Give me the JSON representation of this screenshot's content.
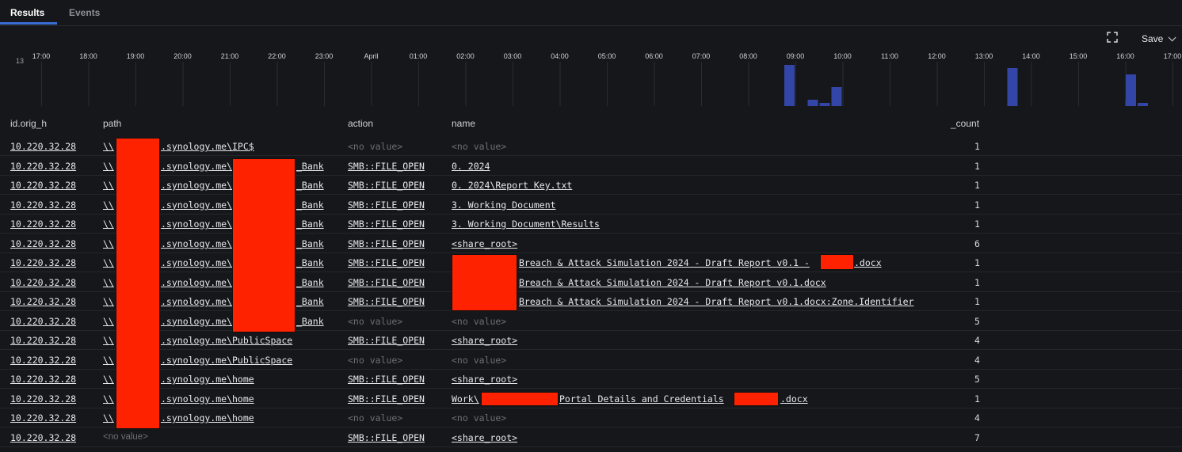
{
  "tabs": [
    {
      "label": "Results",
      "active": true
    },
    {
      "label": "Events",
      "active": false
    }
  ],
  "toolbar": {
    "expand_icon": "expand-icon",
    "save_label": "Save"
  },
  "timeline": {
    "y_max_label": "13",
    "tick_labels": [
      "17:00",
      "18:00",
      "19:00",
      "20:00",
      "21:00",
      "22:00",
      "23:00",
      "April",
      "01:00",
      "02:00",
      "03:00",
      "04:00",
      "05:00",
      "06:00",
      "07:00",
      "08:00",
      "09:00",
      "10:00",
      "11:00",
      "12:00",
      "13:00",
      "14:00",
      "15:00",
      "16:00",
      "17:00"
    ],
    "bar_color": "#3346a8",
    "bars": [
      {
        "hour_index": 16,
        "offset": 0.1,
        "value": 13
      },
      {
        "hour_index": 17,
        "offset": 0.25,
        "value": 2
      },
      {
        "hour_index": 17,
        "offset": 0.5,
        "value": 1
      },
      {
        "hour_index": 17,
        "offset": 0.75,
        "value": 6
      },
      {
        "hour_index": 21,
        "offset": 0.55,
        "value": 12
      },
      {
        "hour_index": 23,
        "offset": 0.0,
        "value": 2
      },
      {
        "hour_index": 23,
        "offset": 0.0,
        "value": 2
      },
      {
        "hour_index": 24,
        "offset": 0.0,
        "value": 10
      },
      {
        "hour_index": 24,
        "offset": 0.25,
        "value": 1
      }
    ]
  },
  "table": {
    "columns": [
      "id.orig_h",
      "path",
      "action",
      "name",
      "_count"
    ],
    "rows": [
      {
        "ip": "10.220.32.28",
        "path_prefix": "\\\\",
        "path_suffix": ".synology.me\\IPC$",
        "action": "<no value>",
        "action_muted": true,
        "name": "<no value>",
        "name_muted": true,
        "count": "1"
      },
      {
        "ip": "10.220.32.28",
        "path_prefix": "\\\\",
        "path_suffix": ".synology.me\\",
        "path_tail": "_Bank",
        "action": "SMB::FILE_OPEN",
        "name": "0. 2024",
        "count": "1"
      },
      {
        "ip": "10.220.32.28",
        "path_prefix": "\\\\",
        "path_suffix": ".synology.me\\",
        "path_tail": "_Bank",
        "action": "SMB::FILE_OPEN",
        "name": "0. 2024\\Report Key.txt",
        "count": "1"
      },
      {
        "ip": "10.220.32.28",
        "path_prefix": "\\\\",
        "path_suffix": ".synology.me\\",
        "path_tail": "_Bank",
        "action": "SMB::FILE_OPEN",
        "name": "3. Working Document",
        "count": "1"
      },
      {
        "ip": "10.220.32.28",
        "path_prefix": "\\\\",
        "path_suffix": ".synology.me\\",
        "path_tail": "_Bank",
        "action": "SMB::FILE_OPEN",
        "name": "3. Working Document\\Results",
        "count": "1"
      },
      {
        "ip": "10.220.32.28",
        "path_prefix": "\\\\",
        "path_suffix": ".synology.me\\",
        "path_tail": "_Bank",
        "action": "SMB::FILE_OPEN",
        "name": "<share_root>",
        "count": "6"
      },
      {
        "ip": "10.220.32.28",
        "path_prefix": "\\\\",
        "path_suffix": ".synology.me\\",
        "path_tail": "_Bank",
        "action": "SMB::FILE_OPEN",
        "name": "Breach & Attack Simulation 2024 - Draft Report v0.1 - ",
        "name_tail": ".docx",
        "count": "1"
      },
      {
        "ip": "10.220.32.28",
        "path_prefix": "\\\\",
        "path_suffix": ".synology.me\\",
        "path_tail": "_Bank",
        "action": "SMB::FILE_OPEN",
        "name": "Breach & Attack Simulation 2024 - Draft Report v0.1.docx",
        "count": "1"
      },
      {
        "ip": "10.220.32.28",
        "path_prefix": "\\\\",
        "path_suffix": ".synology.me\\",
        "path_tail": "_Bank",
        "action": "SMB::FILE_OPEN",
        "name": "Breach & Attack Simulation 2024 - Draft Report v0.1.docx:Zone.Identifier",
        "count": "1"
      },
      {
        "ip": "10.220.32.28",
        "path_prefix": "\\\\",
        "path_suffix": ".synology.me\\",
        "path_tail": "_Bank",
        "action": "<no value>",
        "action_muted": true,
        "name": "<no value>",
        "name_muted": true,
        "count": "5"
      },
      {
        "ip": "10.220.32.28",
        "path_prefix": "\\\\",
        "path_suffix": ".synology.me\\PublicSpace",
        "action": "SMB::FILE_OPEN",
        "name": "<share_root>",
        "count": "4"
      },
      {
        "ip": "10.220.32.28",
        "path_prefix": "\\\\",
        "path_suffix": ".synology.me\\PublicSpace",
        "action": "<no value>",
        "action_muted": true,
        "name": "<no value>",
        "name_muted": true,
        "count": "4"
      },
      {
        "ip": "10.220.32.28",
        "path_prefix": "\\\\",
        "path_suffix": ".synology.me\\home",
        "action": "SMB::FILE_OPEN",
        "name": "<share_root>",
        "count": "5"
      },
      {
        "ip": "10.220.32.28",
        "path_prefix": "\\\\",
        "path_suffix": ".synology.me\\home",
        "action": "SMB::FILE_OPEN",
        "name": "Work\\",
        "name_mid": "Portal Details and Credentials ",
        "name_tail": ".docx",
        "count": "1"
      },
      {
        "ip": "10.220.32.28",
        "path_prefix": "\\\\",
        "path_suffix": ".synology.me\\home",
        "action": "<no value>",
        "action_muted": true,
        "name": "<no value>",
        "name_muted": true,
        "count": "4"
      },
      {
        "ip": "10.220.32.28",
        "path": "<no value>",
        "path_muted": true,
        "action": "SMB::FILE_OPEN",
        "name": "<share_root>",
        "count": "7"
      }
    ]
  }
}
